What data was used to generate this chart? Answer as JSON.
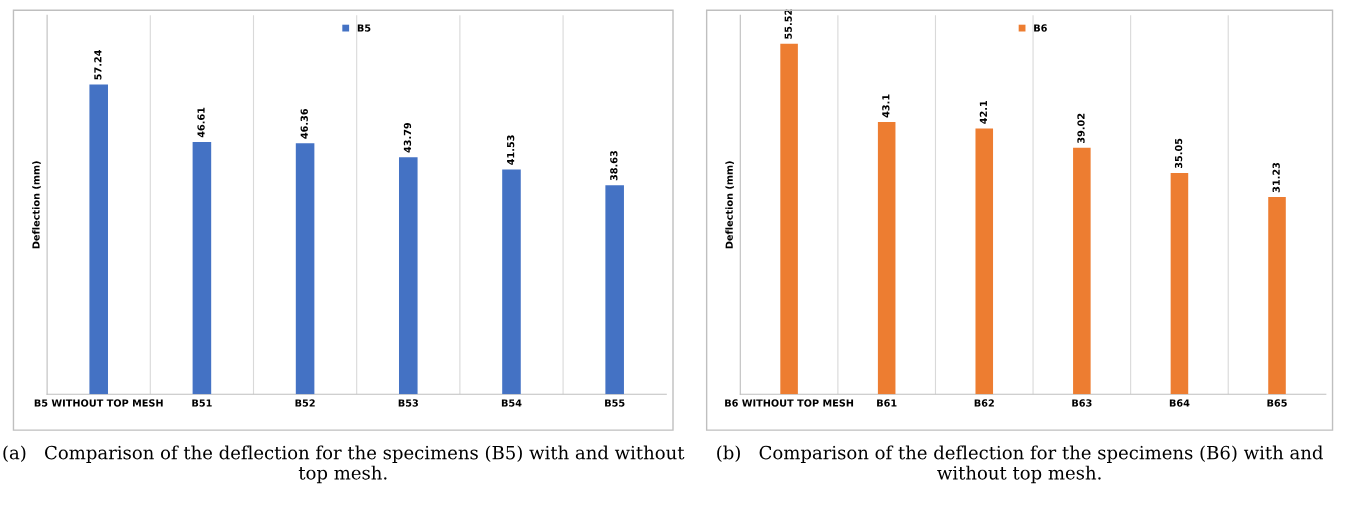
{
  "chart_data": [
    {
      "type": "bar",
      "ylabel": "Deflection (mm)",
      "categories": [
        "B5 WITHOUT TOP MESH",
        "B51",
        "B52",
        "B53",
        "B54",
        "B55"
      ],
      "series": [
        {
          "name": "B5",
          "color": "#4472c4",
          "values": [
            57.24,
            46.61,
            46.36,
            43.79,
            41.53,
            38.63
          ]
        }
      ],
      "ylim": [
        0,
        70
      ],
      "data_labels": true,
      "legend": "top",
      "grid": "x",
      "tick_labels": "x",
      "annotations": [
        "(a)   Comparison of the deflection for the specimens (B5) with and without top mesh."
      ]
    },
    {
      "type": "bar",
      "ylabel": "Deflection (mm)",
      "categories": [
        "B6 WITHOUT TOP MESH",
        "B61",
        "B62",
        "B63",
        "B64",
        "B65"
      ],
      "series": [
        {
          "name": "B6",
          "color": "#ed7d31",
          "values": [
            55.52,
            43.1,
            42.1,
            39.02,
            35.05,
            31.23
          ]
        }
      ],
      "ylim": [
        0,
        60
      ],
      "data_labels": true,
      "legend": "top",
      "grid": "x",
      "tick_labels": "x",
      "annotations": [
        "(b)   Comparison of the deflection for the specimens (B6) with and without top mesh."
      ]
    }
  ]
}
